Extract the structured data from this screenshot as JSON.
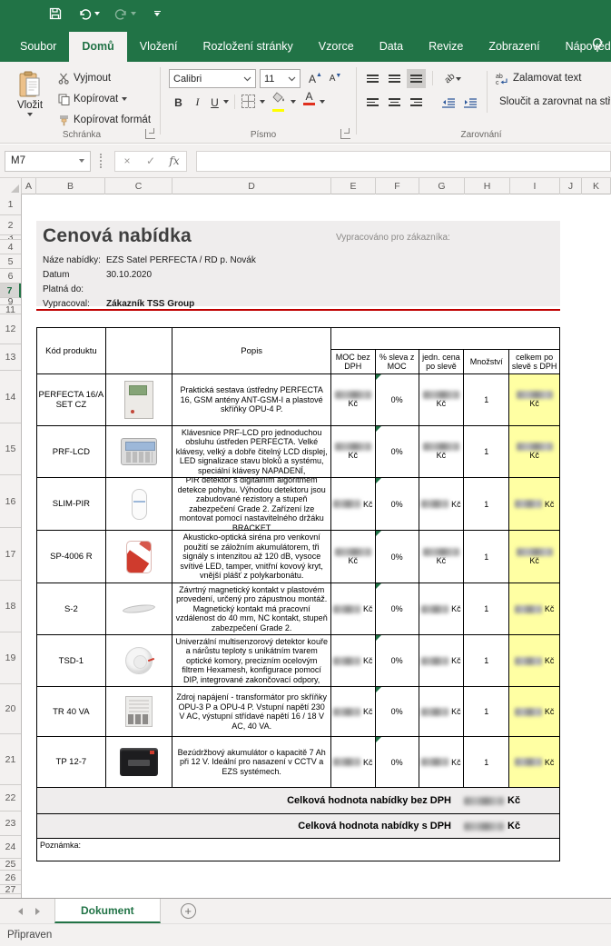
{
  "colors": {
    "accent": "#217346",
    "highlight": "#ffffa3",
    "rule": "#c00000"
  },
  "titlebar": {
    "icons": [
      "save-icon",
      "undo-icon",
      "redo-icon",
      "customize-qat-icon"
    ]
  },
  "tabs": {
    "items": [
      {
        "label": "Soubor",
        "active": false
      },
      {
        "label": "Domů",
        "active": true
      },
      {
        "label": "Vložení",
        "active": false
      },
      {
        "label": "Rozložení stránky",
        "active": false
      },
      {
        "label": "Vzorce",
        "active": false
      },
      {
        "label": "Data",
        "active": false
      },
      {
        "label": "Revize",
        "active": false
      },
      {
        "label": "Zobrazení",
        "active": false
      },
      {
        "label": "Nápověda",
        "active": false
      }
    ]
  },
  "ribbon": {
    "paste_label": "Vložit",
    "cut_label": "Vyjmout",
    "copy_label": "Kopírovat",
    "format_painter_label": "Kopírovat formát",
    "clipboard_group": "Schránka",
    "font_name": "Calibri",
    "font_size": "11",
    "bold_label": "B",
    "italic_label": "I",
    "underline_label": "U",
    "font_group": "Písmo",
    "wrap_label": "Zalamovat text",
    "merge_label": "Sloučit a zarovnat na stř",
    "align_group": "Zarovnání"
  },
  "formula_bar": {
    "name_box": "M7",
    "fx_label": "fx",
    "cancel_glyph": "×",
    "enter_glyph": "✓"
  },
  "sheet": {
    "columns": [
      "A",
      "B",
      "C",
      "D",
      "E",
      "F",
      "G",
      "H",
      "I",
      "J",
      "K"
    ],
    "rows": [
      "1",
      "2",
      "3",
      "4",
      "5",
      "6",
      "7",
      "9",
      "11",
      "12",
      "13",
      "14",
      "15",
      "16",
      "17",
      "18",
      "19",
      "20",
      "21",
      "22",
      "23",
      "24",
      "25",
      "26",
      "27"
    ],
    "active_row": "7"
  },
  "document": {
    "title": "Cenová nabídka",
    "customer_caption": "Vypracováno pro zákazníka:",
    "meta": [
      {
        "label": "Náze nabídky:",
        "value": "EZS Satel PERFECTA / RD p. Novák",
        "bold": false
      },
      {
        "label": "Datum",
        "value": "30.10.2020",
        "bold": false
      },
      {
        "label": "Platná do:",
        "value": "",
        "bold": false
      },
      {
        "label": "Vypracoval:",
        "value": "Zákazník TSS Group",
        "bold": true
      }
    ],
    "table": {
      "headers": {
        "code": "Kód produktu",
        "desc": "Popis",
        "moc": "MOC bez DPH",
        "discount": "% sleva z MOC",
        "unit_price": "jedn. cena po slevě",
        "qty": "Množství",
        "total": "celkem po slevě s DPH"
      },
      "currency": "Kč",
      "products": [
        {
          "code": "PERFECTA 16/A SET CZ",
          "image": "control-panel-image",
          "desc": "Praktická sestava ústředny PERFECTA 16, GSM antény ANT-GSM-I a plastové skříňky OPU-4 P.",
          "price_redacted": true,
          "discount": "0%",
          "qty": "1",
          "two_line": true
        },
        {
          "code": "PRF-LCD",
          "image": "keypad-image",
          "desc": "Klávesnice PRF-LCD pro jednoduchou obsluhu ústředen PERFECTA. Velké klávesy, velký a dobře čitelný LCD displej, LED signalizace stavu bloků a systému, speciální klávesy NAPADENÍ,",
          "price_redacted": true,
          "discount": "0%",
          "qty": "1",
          "two_line": true
        },
        {
          "code": "SLIM-PIR",
          "image": "pir-detector-image",
          "desc": "PIR detektor s digitálním algoritmem detekce pohybu. Výhodou detektoru jsou zabudované rezistory a stupeň zabezpečení Grade 2. Zařízení lze montovat pomocí nastavitelného držáku BRACKET",
          "price_redacted": true,
          "discount": "0%",
          "qty": "1",
          "two_line": false
        },
        {
          "code": "SP-4006 R",
          "image": "siren-image",
          "desc": "Akusticko-optická siréna pro venkovní použití se záložním akumulátorem, tři signály s intenzitou až 120 dB, vysoce svítivé LED, tamper, vnitřní kovový kryt, vnější plášť z polykarbonátu.",
          "price_redacted": true,
          "discount": "0%",
          "qty": "1",
          "two_line": true
        },
        {
          "code": "S-2",
          "image": "magnetic-contact-image",
          "desc": "Závrtný magnetický kontakt v plastovém provedení, určený pro zápustnou montáž. Magnetický kontakt má pracovní vzdálenost do 40 mm, NC kontakt, stupeň zabezpečení Grade 2.",
          "price_redacted": true,
          "discount": "0%",
          "qty": "1",
          "two_line": false
        },
        {
          "code": "TSD-1",
          "image": "smoke-detector-image",
          "desc": "Univerzální multisenzorový detektor kouře a nárůstu teploty s unikátním tvarem optické komory, precizním ocelovým filtrem Hexamesh, konfigurace pomocí DIP, integrované zakončovací odpory,",
          "price_redacted": true,
          "discount": "0%",
          "qty": "1",
          "two_line": false
        },
        {
          "code": "TR 40 VA",
          "image": "transformer-image",
          "desc": "Zdroj napájení - transformátor pro skříňky OPU-3 P a OPU-4 P. Vstupní napětí 230 V AC, výstupní střídavé napětí 16 / 18 V AC, 40 VA.",
          "price_redacted": true,
          "discount": "0%",
          "qty": "1",
          "two_line": false
        },
        {
          "code": "TP 12-7",
          "image": "battery-image",
          "desc": "Bezúdržbový akumulátor o kapacitě 7 Ah při 12 V. Ideální pro nasazení v CCTV a EZS systémech.",
          "price_redacted": true,
          "discount": "0%",
          "qty": "1",
          "two_line": false
        }
      ],
      "total_ex_vat_label": "Celková hodnota nabídky bez DPH",
      "total_inc_vat_label": "Celková hodnota nabídky s DPH",
      "totals_redacted": true,
      "note_label": "Poznámka:"
    }
  },
  "sheet_tabs": {
    "active": "Dokument"
  },
  "status_bar": {
    "text": "Připraven"
  }
}
